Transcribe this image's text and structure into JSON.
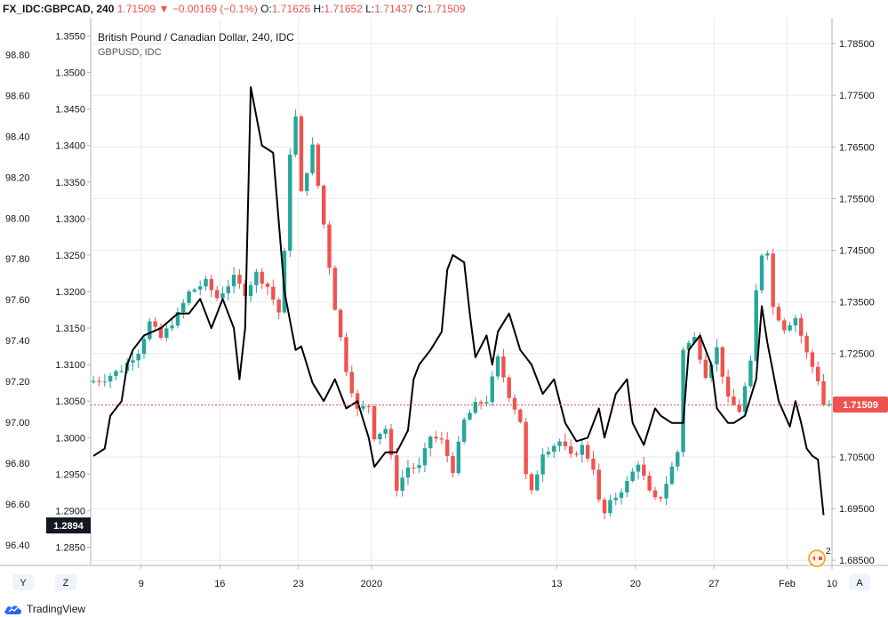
{
  "header": {
    "symbol": "FX_IDC:GBPCAD, 240",
    "last": "1.71509",
    "arrow": "▼",
    "change": "−0.00169 (−0.1%)",
    "o_label": "O:",
    "o_value": "1.71626",
    "h_label": "H:",
    "h_value": "1.71652",
    "l_label": "L:",
    "l_value": "1.71437",
    "c_label": "C:",
    "c_value": "1.71509"
  },
  "legend": {
    "main": "British Pound / Canadian Dollar, 240, IDC",
    "compare": "GBPUSD, IDC"
  },
  "bottom_buttons": {
    "left1": "Y",
    "left2": "Z",
    "right": "A"
  },
  "overlay_badge": "2",
  "footer": {
    "brand": "TradingView"
  },
  "colors": {
    "up": "#26a69a",
    "down": "#ef5350",
    "compare_line": "#000000",
    "price_line": "#ef5350",
    "grid": "#e8eaf0",
    "axis_text": "#131722"
  },
  "chart_data": {
    "type": "candlestick",
    "title": "British Pound / Canadian Dollar, 240, IDC",
    "x_tick_labels": [
      "9",
      "16",
      "23",
      "2020",
      "13",
      "20",
      "27",
      "Feb",
      "10"
    ],
    "right_axis": {
      "range": [
        1.684,
        1.79
      ],
      "ticks": [
        "1.78500",
        "1.77500",
        "1.76500",
        "1.75500",
        "1.74500",
        "1.73500",
        "1.72500",
        "1.71500",
        "1.70500",
        "1.69500",
        "1.68500"
      ],
      "last_price_label": "1.71509",
      "last_price": 1.71509
    },
    "left_axis_outer": {
      "range": [
        96.3,
        98.98
      ],
      "ticks": [
        "98.80",
        "98.60",
        "98.40",
        "98.20",
        "98.00",
        "97.80",
        "97.60",
        "97.40",
        "97.20",
        "97.00",
        "96.80",
        "96.60",
        "96.40"
      ]
    },
    "left_axis_inner": {
      "range": [
        1.2825,
        1.3575
      ],
      "ticks": [
        "1.3550",
        "1.3500",
        "1.3450",
        "1.3400",
        "1.3350",
        "1.3300",
        "1.3250",
        "1.3200",
        "1.3150",
        "1.3100",
        "1.3050",
        "1.3000",
        "1.2950",
        "1.2900",
        "1.2850"
      ],
      "last_value_label": "1.2894",
      "last_value": 1.2894
    },
    "candle_path": [
      [
        0,
        1.7195
      ],
      [
        3,
        1.7202
      ],
      [
        6,
        1.722
      ],
      [
        9,
        1.7255
      ],
      [
        11,
        1.731
      ],
      [
        13,
        1.728
      ],
      [
        16,
        1.7325
      ],
      [
        18,
        1.7368
      ],
      [
        21,
        1.7388
      ],
      [
        23,
        1.7358
      ],
      [
        26,
        1.7396
      ],
      [
        28,
        1.7368
      ],
      [
        30,
        1.7405
      ],
      [
        32,
        1.738
      ],
      [
        34,
        1.733
      ],
      [
        35.5,
        1.75
      ],
      [
        36.5,
        1.778
      ],
      [
        38,
        1.756
      ],
      [
        40,
        1.765
      ],
      [
        42,
        1.75
      ],
      [
        44,
        1.734
      ],
      [
        46,
        1.722
      ],
      [
        48,
        1.714
      ],
      [
        50,
        1.715
      ],
      [
        51,
        1.709
      ],
      [
        53,
        1.7105
      ],
      [
        55,
        1.699
      ],
      [
        57,
        1.703
      ],
      [
        59,
        1.703
      ],
      [
        61,
        1.709
      ],
      [
        63,
        1.708
      ],
      [
        65,
        1.7025
      ],
      [
        67,
        1.712
      ],
      [
        69,
        1.715
      ],
      [
        71,
        1.716
      ],
      [
        73,
        1.724
      ],
      [
        75,
        1.717
      ],
      [
        77,
        1.712
      ],
      [
        78.5,
        1.696
      ],
      [
        81,
        1.706
      ],
      [
        84,
        1.708
      ],
      [
        86,
        1.705
      ],
      [
        88,
        1.707
      ],
      [
        90,
        1.703
      ],
      [
        91.5,
        1.693
      ],
      [
        93,
        1.696
      ],
      [
        96,
        1.7
      ],
      [
        98,
        1.704
      ],
      [
        100,
        1.698
      ],
      [
        101.5,
        1.696
      ],
      [
        103,
        1.7
      ],
      [
        105,
        1.706
      ],
      [
        106,
        1.726
      ],
      [
        108,
        1.728
      ],
      [
        110,
        1.721
      ],
      [
        112,
        1.726
      ],
      [
        114,
        1.716
      ],
      [
        116,
        1.714
      ],
      [
        118,
        1.723
      ],
      [
        119.5,
        1.744
      ],
      [
        121,
        1.745
      ],
      [
        122,
        1.734
      ],
      [
        124,
        1.73
      ],
      [
        126,
        1.732
      ],
      [
        128,
        1.725
      ],
      [
        130,
        1.72
      ],
      [
        131,
        1.7152
      ]
    ],
    "compare_path": [
      [
        0,
        1.2975
      ],
      [
        2,
        1.2985
      ],
      [
        3,
        1.303
      ],
      [
        5,
        1.305
      ],
      [
        6,
        1.31
      ],
      [
        7,
        1.312
      ],
      [
        9,
        1.314
      ],
      [
        12,
        1.315
      ],
      [
        15,
        1.317
      ],
      [
        17,
        1.317
      ],
      [
        19,
        1.319
      ],
      [
        21,
        1.315
      ],
      [
        23,
        1.319
      ],
      [
        25,
        1.315
      ],
      [
        26,
        1.308
      ],
      [
        27,
        1.315
      ],
      [
        28,
        1.348
      ],
      [
        30,
        1.34
      ],
      [
        32,
        1.339
      ],
      [
        34,
        1.32
      ],
      [
        36,
        1.312
      ],
      [
        37,
        1.3125
      ],
      [
        39,
        1.3075
      ],
      [
        41,
        1.305
      ],
      [
        43,
        1.308
      ],
      [
        45,
        1.304
      ],
      [
        47,
        1.305
      ],
      [
        49,
        1.3
      ],
      [
        50,
        1.296
      ],
      [
        52,
        1.298
      ],
      [
        54,
        1.298
      ],
      [
        56,
        1.301
      ],
      [
        57,
        1.308
      ],
      [
        58,
        1.31
      ],
      [
        60,
        1.312
      ],
      [
        62,
        1.3145
      ],
      [
        63,
        1.323
      ],
      [
        64,
        1.325
      ],
      [
        66,
        1.324
      ],
      [
        67,
        1.317
      ],
      [
        68,
        1.311
      ],
      [
        70,
        1.314
      ],
      [
        71,
        1.31
      ],
      [
        72,
        1.3145
      ],
      [
        74,
        1.317
      ],
      [
        76,
        1.312
      ],
      [
        78,
        1.31
      ],
      [
        80,
        1.306
      ],
      [
        82,
        1.308
      ],
      [
        84,
        1.302
      ],
      [
        86,
        1.2995
      ],
      [
        88,
        1.3
      ],
      [
        90,
        1.304
      ],
      [
        91,
        1.3
      ],
      [
        93,
        1.306
      ],
      [
        95,
        1.308
      ],
      [
        96,
        1.302
      ],
      [
        98,
        1.299
      ],
      [
        100,
        1.304
      ],
      [
        101,
        1.303
      ],
      [
        103,
        1.302
      ],
      [
        105,
        1.302
      ],
      [
        106,
        1.312
      ],
      [
        108,
        1.314
      ],
      [
        110,
        1.31
      ],
      [
        111,
        1.304
      ],
      [
        113,
        1.302
      ],
      [
        114,
        1.302
      ],
      [
        116,
        1.303
      ],
      [
        118,
        1.308
      ],
      [
        119,
        1.318
      ],
      [
        120,
        1.313
      ],
      [
        122,
        1.305
      ],
      [
        124,
        1.3015
      ],
      [
        125,
        1.305
      ],
      [
        126,
        1.302
      ],
      [
        127,
        1.2985
      ],
      [
        128,
        1.2975
      ],
      [
        129,
        1.297
      ],
      [
        130,
        1.2894
      ]
    ]
  }
}
